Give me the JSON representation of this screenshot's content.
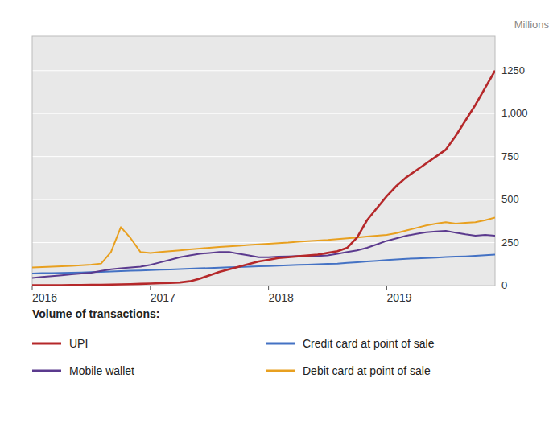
{
  "chart_data": {
    "type": "line",
    "ylabel": "Millions",
    "legend_title": "Volume of transactions:",
    "legend": "bottom",
    "grid": true,
    "ylim": [
      0,
      1450
    ],
    "yticks": [
      0,
      250,
      500,
      750,
      {
        "value": 1000,
        "label": "1,000"
      },
      1250
    ],
    "categories": [
      "2016",
      null,
      null,
      null,
      null,
      null,
      null,
      null,
      null,
      null,
      null,
      null,
      "2017",
      null,
      null,
      null,
      null,
      null,
      null,
      null,
      null,
      null,
      null,
      null,
      "2018",
      null,
      null,
      null,
      null,
      null,
      null,
      null,
      null,
      null,
      null,
      null,
      "2019",
      null,
      null,
      null,
      null,
      null,
      null,
      null,
      null,
      null,
      null,
      null
    ],
    "series": [
      {
        "name": "UPI",
        "color": "#b5282a",
        "values": [
          2,
          2,
          2,
          2,
          3,
          3,
          4,
          5,
          6,
          7,
          8,
          10,
          12,
          14,
          15,
          18,
          25,
          40,
          60,
          80,
          95,
          110,
          125,
          140,
          150,
          160,
          165,
          170,
          175,
          180,
          190,
          200,
          220,
          280,
          380,
          450,
          520,
          580,
          630,
          670,
          710,
          750,
          790,
          870,
          960,
          1050,
          1150,
          1250
        ]
      },
      {
        "name": "Mobile wallet",
        "color": "#5b3a8e",
        "values": [
          45,
          50,
          55,
          60,
          65,
          70,
          75,
          85,
          95,
          100,
          105,
          110,
          120,
          135,
          150,
          165,
          175,
          185,
          190,
          195,
          195,
          185,
          175,
          165,
          165,
          168,
          170,
          172,
          170,
          172,
          175,
          185,
          195,
          205,
          220,
          240,
          260,
          275,
          290,
          300,
          310,
          315,
          318,
          308,
          298,
          290,
          295,
          290
        ]
      },
      {
        "name": "Credit card at point of sale",
        "color": "#4472c4",
        "values": [
          70,
          72,
          73,
          74,
          75,
          76,
          78,
          80,
          82,
          84,
          86,
          88,
          90,
          92,
          94,
          96,
          98,
          100,
          102,
          104,
          106,
          108,
          110,
          112,
          114,
          116,
          118,
          120,
          122,
          124,
          126,
          128,
          132,
          136,
          140,
          144,
          148,
          152,
          156,
          158,
          160,
          163,
          166,
          168,
          170,
          173,
          176,
          180
        ]
      },
      {
        "name": "Debit card at point of sale",
        "color": "#e8a020",
        "values": [
          105,
          108,
          110,
          112,
          115,
          118,
          122,
          128,
          195,
          340,
          275,
          195,
          190,
          195,
          200,
          205,
          210,
          215,
          220,
          225,
          228,
          232,
          236,
          240,
          243,
          247,
          250,
          255,
          258,
          262,
          265,
          270,
          275,
          280,
          285,
          290,
          295,
          305,
          320,
          335,
          350,
          360,
          368,
          360,
          365,
          368,
          380,
          395
        ]
      }
    ]
  }
}
